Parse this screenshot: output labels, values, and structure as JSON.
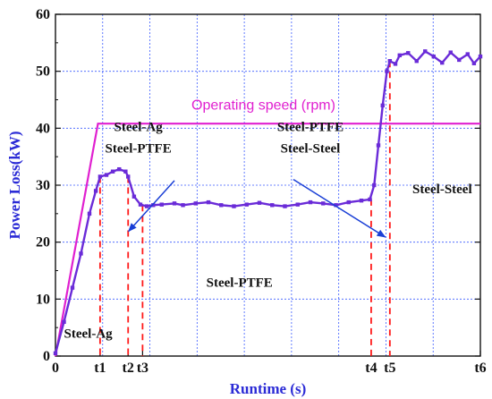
{
  "chart_data": {
    "type": "line",
    "xlabel": "Runtime (s)",
    "ylabel": "Power Loss(kW)",
    "ylim": [
      0,
      60
    ],
    "y_ticks": [
      "0",
      "10",
      "20",
      "30",
      "40",
      "50",
      "60"
    ],
    "x_ticks": [
      "0",
      "t1",
      "t2",
      "t3",
      "t4",
      "t5",
      "t6"
    ],
    "x_tick_positions": [
      0,
      0.105,
      0.171,
      0.205,
      0.743,
      0.787,
      1.0
    ],
    "grid": true,
    "series": [
      {
        "name": "Operating speed (rpm)",
        "color": "#e020d0",
        "points": [
          [
            0,
            0
          ],
          [
            0.1,
            40.8
          ],
          [
            1.0,
            40.8
          ]
        ]
      },
      {
        "name": "Power Loss",
        "color": "#6a2bd8",
        "points": [
          [
            0.0,
            0.5
          ],
          [
            0.02,
            6
          ],
          [
            0.04,
            12
          ],
          [
            0.06,
            18
          ],
          [
            0.08,
            25
          ],
          [
            0.095,
            29
          ],
          [
            0.105,
            31.5
          ],
          [
            0.12,
            31.8
          ],
          [
            0.135,
            32.4
          ],
          [
            0.15,
            32.8
          ],
          [
            0.165,
            32.4
          ],
          [
            0.171,
            31.5
          ],
          [
            0.185,
            28
          ],
          [
            0.2,
            26.6
          ],
          [
            0.215,
            26.3
          ],
          [
            0.23,
            26.5
          ],
          [
            0.25,
            26.6
          ],
          [
            0.28,
            26.8
          ],
          [
            0.3,
            26.5
          ],
          [
            0.33,
            26.8
          ],
          [
            0.36,
            27.0
          ],
          [
            0.39,
            26.5
          ],
          [
            0.42,
            26.3
          ],
          [
            0.45,
            26.6
          ],
          [
            0.48,
            26.9
          ],
          [
            0.51,
            26.5
          ],
          [
            0.54,
            26.3
          ],
          [
            0.57,
            26.6
          ],
          [
            0.6,
            27.0
          ],
          [
            0.63,
            26.8
          ],
          [
            0.66,
            26.5
          ],
          [
            0.69,
            27.0
          ],
          [
            0.72,
            27.3
          ],
          [
            0.74,
            27.5
          ],
          [
            0.75,
            30
          ],
          [
            0.76,
            37
          ],
          [
            0.77,
            44
          ],
          [
            0.78,
            50
          ],
          [
            0.787,
            51.8
          ],
          [
            0.8,
            51.3
          ],
          [
            0.81,
            52.8
          ],
          [
            0.83,
            53.2
          ],
          [
            0.85,
            51.8
          ],
          [
            0.87,
            53.5
          ],
          [
            0.89,
            52.6
          ],
          [
            0.91,
            51.5
          ],
          [
            0.93,
            53.3
          ],
          [
            0.95,
            52.0
          ],
          [
            0.97,
            53.0
          ],
          [
            0.985,
            51.4
          ],
          [
            1.0,
            52.6
          ]
        ]
      }
    ],
    "events": [
      {
        "x": 0.105,
        "y": 31.5
      },
      {
        "x": 0.171,
        "y": 31.5
      },
      {
        "x": 0.205,
        "y": 26.5
      },
      {
        "x": 0.743,
        "y": 27.5
      },
      {
        "x": 0.787,
        "y": 51.8
      }
    ],
    "annotations": [
      {
        "text": "Operating speed (rpm)",
        "x": 0.32,
        "y": 43.3,
        "anchor": "start",
        "cls": "speed-label"
      },
      {
        "text": "Steel-Ag",
        "x": 0.195,
        "y": 39.5,
        "anchor": "middle",
        "cls": "ann"
      },
      {
        "text": "Steel-PTFE",
        "x": 0.195,
        "y": 35.7,
        "anchor": "middle",
        "cls": "ann"
      },
      {
        "text": "Steel-PTFE",
        "x": 0.6,
        "y": 39.5,
        "anchor": "middle",
        "cls": "ann"
      },
      {
        "text": "Steel-Steel",
        "x": 0.6,
        "y": 35.7,
        "anchor": "middle",
        "cls": "ann"
      },
      {
        "text": "Steel-Steel",
        "x": 0.84,
        "y": 28.6,
        "anchor": "start",
        "cls": "ann"
      },
      {
        "text": "Steel-PTFE",
        "x": 0.355,
        "y": 12.2,
        "anchor": "start",
        "cls": "ann"
      },
      {
        "text": "Steel-Ag",
        "x": 0.02,
        "y": 3.2,
        "anchor": "start",
        "cls": "ann"
      }
    ],
    "arrows": [
      {
        "from": [
          0.28,
          30.8
        ],
        "to": [
          0.172,
          21.9
        ]
      },
      {
        "from": [
          0.56,
          31.0
        ],
        "to": [
          0.776,
          20.9
        ]
      }
    ]
  }
}
